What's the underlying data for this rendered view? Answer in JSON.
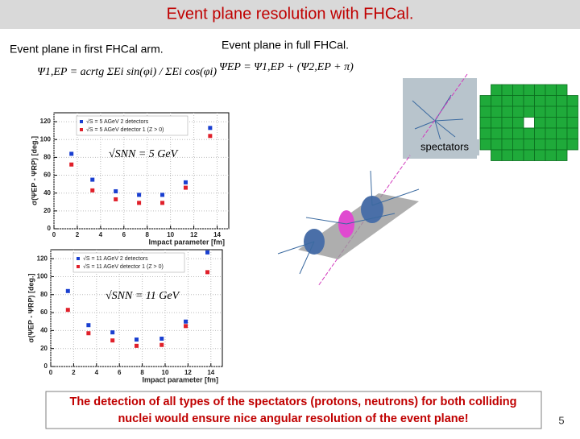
{
  "header": {
    "title": "Event plane resolution with FHCal."
  },
  "left": {
    "subtitle": "Event plane in first FHCal arm.",
    "formula": "Ψ1,EP = acrtg ΣEi sin(φi) / ΣEi cos(φi)"
  },
  "right": {
    "subtitle": "Event plane in full FHCal.",
    "formula": "ΨEP = Ψ1,EP + (Ψ2,EP + π)",
    "label": "spectators"
  },
  "plots": [
    {
      "type": "scatter",
      "xlabel": "Impact parameter [fm]",
      "ylabel": "σ(ΨEP - ΨRP) [deg.]",
      "annotation": "√SNN = 5 GeV",
      "xlim": [
        0,
        15
      ],
      "ylim": [
        0,
        130
      ],
      "xticks": [
        0,
        2,
        4,
        6,
        8,
        10,
        12,
        14
      ],
      "yticks": [
        0,
        20,
        40,
        60,
        80,
        100,
        120
      ],
      "series": [
        {
          "name": "√S = 5 AGeV 2 detectors",
          "color": "#1a3fd0",
          "x": [
            1.5,
            3.3,
            5.3,
            7.3,
            9.3,
            11.3,
            13.4
          ],
          "values": [
            84,
            55,
            42,
            38,
            38,
            52,
            113
          ]
        },
        {
          "name": "√S = 5 AGeV detector 1 (Z > 0)",
          "color": "#e0202a",
          "x": [
            1.5,
            3.3,
            5.3,
            7.3,
            9.3,
            11.3,
            13.4
          ],
          "values": [
            72,
            43,
            33,
            29,
            29,
            46,
            104
          ]
        }
      ]
    },
    {
      "type": "scatter",
      "xlabel": "Impact parameter [fm]",
      "ylabel": "σ(ΨEP - ΨRP) [deg.]",
      "annotation": "√SNN = 11 GeV",
      "xlim": [
        0,
        15
      ],
      "ylim": [
        0,
        130
      ],
      "xticks": [
        0,
        2,
        4,
        6,
        8,
        10,
        12,
        14
      ],
      "yticks": [
        0,
        20,
        40,
        60,
        80,
        100,
        120
      ],
      "series": [
        {
          "name": "√S = 11 AGeV 2 detectors",
          "color": "#1a3fd0",
          "x": [
            1.5,
            3.3,
            5.4,
            7.5,
            9.7,
            11.8,
            13.7
          ],
          "values": [
            84,
            46,
            38,
            30,
            31,
            50,
            127
          ]
        },
        {
          "name": "√S = 11 AGeV detector 1 (Z > 0)",
          "color": "#e0202a",
          "x": [
            1.5,
            3.3,
            5.4,
            7.5,
            9.7,
            11.8,
            13.7
          ],
          "values": [
            63,
            37,
            29,
            23,
            24,
            45,
            105
          ]
        }
      ]
    }
  ],
  "footer": {
    "lines": [
      "The detection of all types of the spectators (protons, neutrons) for both colliding",
      "nuclei would ensure nice  angular resolution of the event plane!"
    ],
    "page": "5"
  }
}
